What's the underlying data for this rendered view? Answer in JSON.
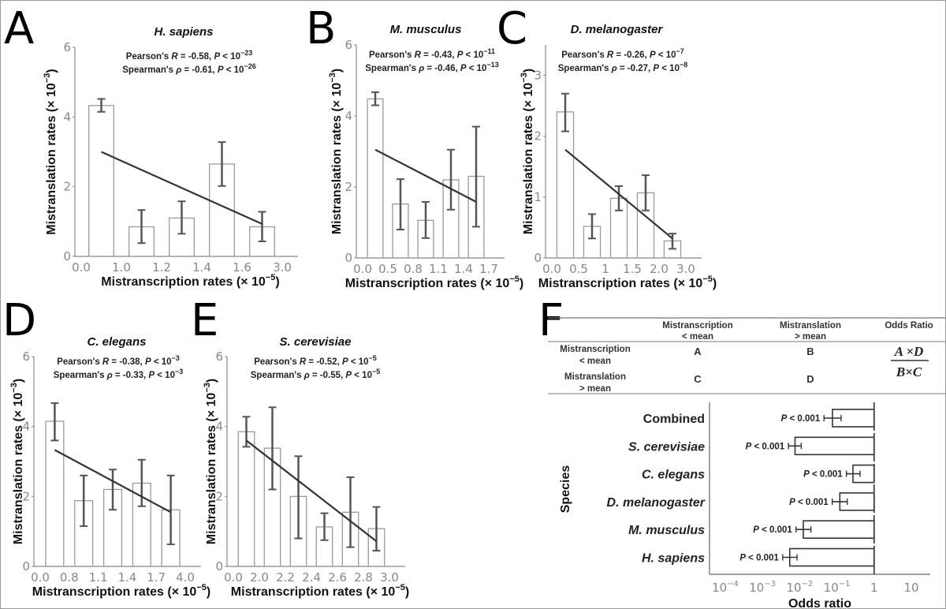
{
  "colors": {
    "bar_stroke": "#9a9a9a",
    "errorbar": "#555555",
    "fit_line": "#333333",
    "axis": "#888888"
  },
  "chart_data": [
    {
      "panel": "A",
      "type": "bar",
      "title": "H. sapiens",
      "xlabel": "Mistranscription rates (× 10",
      "xlabel_exp": "−5",
      "ylabel": "Mistranslation rates (× 10",
      "ylabel_exp": "−3",
      "x_ticks": [
        "0.0",
        "1.0",
        "1.2",
        "1.4",
        "1.6",
        "3.0"
      ],
      "y_ticks": [
        0,
        2,
        4,
        6
      ],
      "ylim": [
        0,
        6
      ],
      "values": [
        4.33,
        0.85,
        1.1,
        2.65,
        0.85
      ],
      "err_low": [
        4.15,
        0.38,
        0.65,
        2.02,
        0.43
      ],
      "err_high": [
        4.52,
        1.33,
        1.58,
        3.28,
        1.28
      ],
      "fit": [
        3.0,
        0.93
      ],
      "pearson": {
        "label": "Pearson's ",
        "sym": "R",
        "value": " = -0.58,  ",
        "p": "P",
        " lt": " < 10",
        "exp": "−23"
      },
      "spearman": {
        "label": "Spearman's ",
        "sym": "ρ",
        "value": " = -0.61,  ",
        "p": "P",
        " lt": " < 10",
        "exp": "−26"
      }
    },
    {
      "panel": "B",
      "type": "bar",
      "title": "M. musculus",
      "xlabel": "Mistranscription rates (× 10",
      "xlabel_exp": "−5",
      "ylabel": "Mistranslation rates (× 10",
      "ylabel_exp": "−3",
      "x_ticks": [
        "0.0",
        "0.5",
        "0.8",
        "1.1",
        "1.4",
        "1.7"
      ],
      "y_ticks": [
        0,
        2,
        4,
        6
      ],
      "ylim": [
        0,
        6
      ],
      "values": [
        4.48,
        1.52,
        1.06,
        2.2,
        2.3
      ],
      "err_low": [
        4.3,
        0.8,
        0.56,
        1.36,
        0.88
      ],
      "err_high": [
        4.67,
        2.22,
        1.58,
        3.05,
        3.7
      ],
      "fit": [
        3.05,
        1.58
      ],
      "pearson": {
        "label": "Pearson's ",
        "sym": "R",
        "value": " = -0.43,  ",
        "p": "P",
        " lt": " < 10",
        "exp": "−11"
      },
      "spearman": {
        "label": "Spearman's ",
        "sym": "ρ",
        "value": " = -0.46,  ",
        "p": "P",
        " lt": " < 10",
        "exp": "−13"
      }
    },
    {
      "panel": "C",
      "type": "bar",
      "title": "D. melanogaster",
      "xlabel": "Mistranscription rates (× 10",
      "xlabel_exp": "−5",
      "ylabel": "Mistranslation rates (× 10",
      "ylabel_exp": "−3",
      "x_ticks": [
        "0.0",
        "0.5",
        "1",
        "1.5",
        "2.0",
        "3.0"
      ],
      "y_ticks": [
        0,
        1,
        2,
        3
      ],
      "ylim": [
        0,
        3.5
      ],
      "values": [
        2.4,
        0.52,
        0.98,
        1.07,
        0.28
      ],
      "err_low": [
        2.08,
        0.32,
        0.78,
        0.78,
        0.15
      ],
      "err_high": [
        2.7,
        0.72,
        1.18,
        1.36,
        0.4
      ],
      "fit": [
        1.78,
        0.32
      ],
      "pearson": {
        "label": "Pearson's ",
        "sym": "R",
        "value": " = -0.26,  ",
        "p": "P",
        " lt": " < 10",
        "exp": "−7"
      },
      "spearman": {
        "label": "Spearman's ",
        "sym": "ρ",
        "value": " = -0.27,  ",
        "p": "P",
        " lt": " < 10",
        "exp": "−8"
      }
    },
    {
      "panel": "D",
      "type": "bar",
      "title": "C. elegans",
      "xlabel": "Mistranscription rates (× 10",
      "xlabel_exp": "−5",
      "ylabel": "Mistranslation rates (× 10",
      "ylabel_exp": "−3",
      "x_ticks": [
        "0.0",
        "0.8",
        "1.1",
        "1.4",
        "1.7",
        "4.0"
      ],
      "y_ticks": [
        0,
        2,
        4,
        6
      ],
      "ylim": [
        0,
        6
      ],
      "values": [
        4.15,
        1.88,
        2.2,
        2.38,
        1.62
      ],
      "err_low": [
        3.6,
        1.15,
        1.62,
        1.72,
        0.63
      ],
      "err_high": [
        4.67,
        2.6,
        2.77,
        3.05,
        2.6
      ],
      "fit": [
        3.33,
        1.55
      ],
      "pearson": {
        "label": "Pearson's ",
        "sym": "R",
        "value": " = -0.38,  ",
        "p": "P",
        " lt": " < 10",
        "exp": "−3"
      },
      "spearman": {
        "label": "Spearman's ",
        "sym": "ρ",
        "value": " = -0.33,  ",
        "p": "P",
        " lt": " < 10",
        "exp": "−3"
      }
    },
    {
      "panel": "E",
      "type": "bar",
      "title": "S. cerevisiae",
      "xlabel": "Mistranscription rates (× 10",
      "xlabel_exp": "−5",
      "ylabel": "Mistranslation rates (× 10",
      "ylabel_exp": "−3",
      "x_ticks": [
        "0.0",
        "2.0",
        "2.2",
        "2.4",
        "2.6",
        "2.8",
        "3.0"
      ],
      "y_ticks": [
        0,
        2,
        4,
        6
      ],
      "ylim": [
        0,
        6
      ],
      "values": [
        3.85,
        3.38,
        2.0,
        1.13,
        1.55,
        1.08
      ],
      "err_low": [
        3.42,
        2.2,
        0.8,
        0.75,
        0.55,
        0.45
      ],
      "err_high": [
        4.28,
        4.55,
        3.15,
        1.52,
        2.55,
        1.7
      ],
      "fit": [
        3.6,
        0.72
      ],
      "pearson": {
        "label": "Pearson's ",
        "sym": "R",
        "value": " = -0.52,  ",
        "p": "P",
        " lt": " < 10",
        "exp": "−5"
      },
      "spearman": {
        "label": "Spearman's ",
        "sym": "ρ",
        "value": " = -0.55,  ",
        "p": "P",
        " lt": " < 10",
        "exp": "−5"
      }
    },
    {
      "panel": "F",
      "type": "bar",
      "orientation": "horizontal",
      "x_scale": "log",
      "xlabel": "Odds ratio",
      "ylabel": "Species",
      "x_ticks": [
        {
          "base": "10",
          "exp": "−4"
        },
        {
          "base": "10",
          "exp": "−3"
        },
        {
          "base": "10",
          "exp": "−2"
        },
        {
          "base": "10",
          "exp": "−1"
        },
        {
          "base": "1",
          "exp": ""
        },
        {
          "base": "10",
          "exp": ""
        }
      ],
      "xlim": [
        0.0001,
        10
      ],
      "categories": [
        "Combined",
        "S. cerevisiae",
        "C. elegans",
        "D. melanogaster",
        "M. musculus",
        "H. sapiens"
      ],
      "italic": [
        false,
        true,
        true,
        true,
        true,
        true
      ],
      "values": [
        0.076,
        0.0075,
        0.27,
        0.12,
        0.0125,
        0.0054
      ],
      "err_low": [
        0.045,
        0.005,
        0.18,
        0.075,
        0.008,
        0.0035
      ],
      "err_high": [
        0.13,
        0.011,
        0.42,
        0.19,
        0.02,
        0.0085
      ],
      "p_labels": [
        "P < 0.001",
        "P < 0.001",
        "P < 0.001",
        "P < 0.001",
        "P < 0.001",
        "P < 0.001"
      ],
      "reference_line": 1,
      "table": {
        "headers": [
          [
            "Mistranscription",
            "< mean"
          ],
          [
            "Mistranslation",
            "> mean"
          ],
          [
            "Odds Ratio"
          ]
        ],
        "rows": [
          {
            "label": [
              "Mistranscription",
              "< mean"
            ],
            "cells": [
              "A",
              "B"
            ]
          },
          {
            "label": [
              "Mistranslation",
              "> mean"
            ],
            "cells": [
              "C",
              "D"
            ]
          }
        ],
        "odds_numerator": "A ×D",
        "odds_denominator": "B×C"
      }
    }
  ]
}
